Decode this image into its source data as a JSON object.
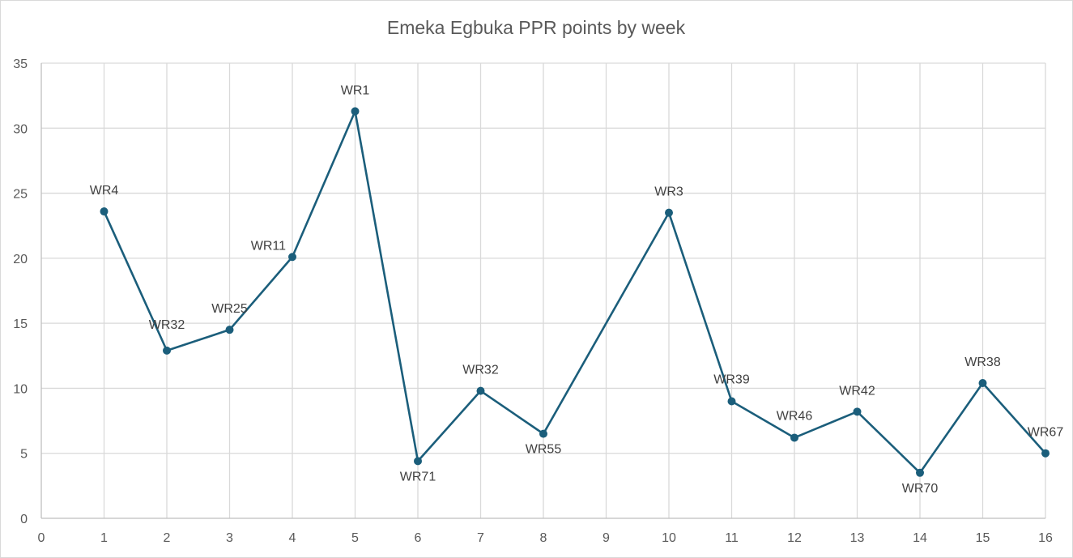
{
  "chart_data": {
    "type": "line",
    "title": "Emeka Egbuka PPR points by week",
    "xlabel": "",
    "ylabel": "",
    "xlim": [
      0,
      16
    ],
    "ylim": [
      0,
      35
    ],
    "x_ticks": [
      0,
      1,
      2,
      3,
      4,
      5,
      6,
      7,
      8,
      9,
      10,
      11,
      12,
      13,
      14,
      15,
      16
    ],
    "y_ticks": [
      0,
      5,
      10,
      15,
      20,
      25,
      30,
      35
    ],
    "grid": true,
    "legend": "none",
    "series": [
      {
        "name": "PPR points",
        "color": "#1b5e7b",
        "points": [
          {
            "x": 1,
            "y": 23.6,
            "label": "WR4"
          },
          {
            "x": 2,
            "y": 12.9,
            "label": "WR32"
          },
          {
            "x": 3,
            "y": 14.5,
            "label": "WR25"
          },
          {
            "x": 4,
            "y": 20.1,
            "label": "WR11"
          },
          {
            "x": 5,
            "y": 31.3,
            "label": "WR1"
          },
          {
            "x": 6,
            "y": 4.4,
            "label": "WR71"
          },
          {
            "x": 7,
            "y": 9.8,
            "label": "WR32"
          },
          {
            "x": 8,
            "y": 6.5,
            "label": "WR55"
          },
          {
            "x": 10,
            "y": 23.5,
            "label": "WR3"
          },
          {
            "x": 11,
            "y": 9.0,
            "label": "WR39"
          },
          {
            "x": 12,
            "y": 6.2,
            "label": "WR46"
          },
          {
            "x": 13,
            "y": 8.2,
            "label": "WR42"
          },
          {
            "x": 14,
            "y": 3.5,
            "label": "WR70"
          },
          {
            "x": 15,
            "y": 10.4,
            "label": "WR38"
          },
          {
            "x": 16,
            "y": 5.0,
            "label": "WR67"
          }
        ]
      }
    ]
  }
}
